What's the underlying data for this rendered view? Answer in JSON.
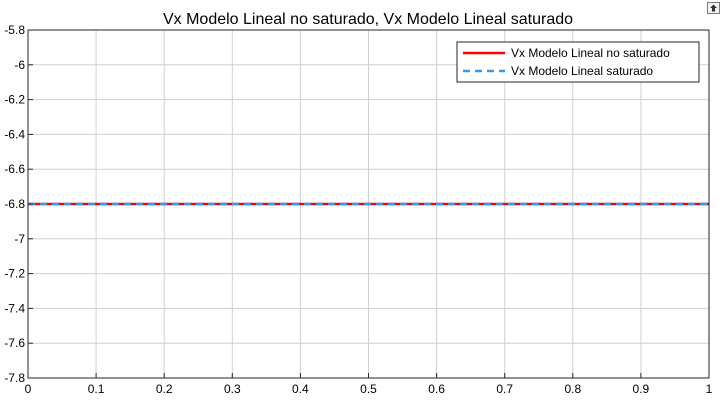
{
  "window": {
    "restore_icon": "restore-axes-icon"
  },
  "chart_data": {
    "type": "line",
    "title": "Vx Modelo Lineal no saturado, Vx Modelo Lineal saturado",
    "xlabel": "",
    "ylabel": "",
    "xlim": [
      0,
      1
    ],
    "ylim": [
      -7.8,
      -5.8
    ],
    "xticks": [
      "0",
      "0.1",
      "0.2",
      "0.3",
      "0.4",
      "0.5",
      "0.6",
      "0.7",
      "0.8",
      "0.9",
      "1"
    ],
    "yticks": [
      "-5.8",
      "-6",
      "-6.2",
      "-6.4",
      "-6.6",
      "-6.8",
      "-7",
      "-7.2",
      "-7.4",
      "-7.6",
      "-7.8"
    ],
    "grid": true,
    "legend_position": "top-right",
    "series": [
      {
        "name": "Vx Modelo Lineal no saturado",
        "color": "#ff0000",
        "style": "solid",
        "x": [
          0,
          1
        ],
        "y": [
          -6.8,
          -6.8
        ]
      },
      {
        "name": "Vx Modelo Lineal saturado",
        "color": "#3399ee",
        "style": "dashed",
        "x": [
          0,
          1
        ],
        "y": [
          -6.8,
          -6.8
        ]
      }
    ]
  }
}
